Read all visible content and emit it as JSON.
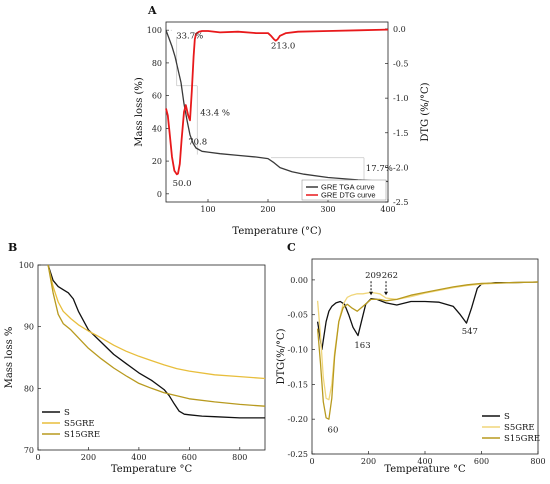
{
  "chart_data": [
    {
      "panel": "A",
      "type": "line",
      "xlabel": "Temperature (°C)",
      "ylabel_left": "Mass loss (%)",
      "ylabel_right": "DTG (%/°C)",
      "xlim": [
        30,
        400
      ],
      "ylim_left": [
        -5,
        105
      ],
      "ylim_right": [
        -2.5,
        0.1
      ],
      "xticks": [
        100,
        200,
        300,
        400
      ],
      "yticks_left": [
        0,
        20,
        40,
        60,
        80,
        100
      ],
      "yticks_right": [
        0.0,
        -0.5,
        -1.0,
        -1.5,
        -2.0,
        -2.5
      ],
      "yticks_right_labels": [
        "0.0",
        "-0.5",
        "-1.0",
        "-1.5",
        "-2.0",
        "-2.5"
      ],
      "legend": "bottom-right",
      "series": [
        {
          "name": "GRE TGA curve",
          "axis": "left",
          "color": "#3a3a3a",
          "x": [
            30,
            35,
            40,
            45,
            50,
            55,
            60,
            65,
            70,
            75,
            80,
            90,
            100,
            120,
            150,
            180,
            200,
            210,
            220,
            240,
            260,
            300,
            350,
            400
          ],
          "y": [
            100,
            95,
            90,
            84,
            76,
            68,
            55,
            45,
            36,
            31,
            28,
            26,
            25.5,
            24.5,
            23.5,
            22.5,
            21.5,
            19,
            16,
            13.5,
            12,
            10,
            8.5,
            7.5
          ]
        },
        {
          "name": "GRE DTG curve",
          "axis": "right",
          "color": "#e8191b",
          "x": [
            30,
            33,
            36,
            40,
            44,
            48,
            50,
            53,
            56,
            60,
            63,
            67,
            70,
            73,
            76,
            78,
            80,
            85,
            90,
            100,
            120,
            150,
            180,
            200,
            205,
            210,
            213,
            216,
            220,
            230,
            250,
            300,
            350,
            400
          ],
          "y": [
            -1.15,
            -1.25,
            -1.5,
            -1.85,
            -2.05,
            -2.1,
            -2.09,
            -1.95,
            -1.6,
            -1.2,
            -1.1,
            -1.25,
            -1.32,
            -0.9,
            -0.4,
            -0.15,
            -0.07,
            -0.04,
            -0.03,
            -0.03,
            -0.05,
            -0.04,
            -0.06,
            -0.06,
            -0.1,
            -0.15,
            -0.17,
            -0.15,
            -0.1,
            -0.06,
            -0.04,
            -0.03,
            -0.02,
            -0.01
          ]
        }
      ],
      "annotations": [
        {
          "text": "33.7%",
          "x": 47,
          "y": 95,
          "axis": "left"
        },
        {
          "text": "43.4 %",
          "x": 87,
          "y": 48,
          "axis": "left"
        },
        {
          "text": "70.8",
          "x": 67,
          "y": 30,
          "axis": "left"
        },
        {
          "text": "50.0",
          "x": 41,
          "y": -2.27,
          "axis": "right"
        },
        {
          "text": "213.0",
          "x": 205,
          "y": -0.28,
          "axis": "right"
        },
        {
          "text": "17.7%",
          "x": 363,
          "y": 14,
          "axis": "left"
        }
      ]
    },
    {
      "panel": "B",
      "type": "line",
      "xlabel": "Temperature °C",
      "ylabel": "Mass loss %",
      "xlim": [
        0,
        900
      ],
      "ylim": [
        70,
        100
      ],
      "xticks": [
        0,
        200,
        400,
        600,
        800
      ],
      "yticks": [
        70,
        80,
        90,
        100
      ],
      "legend": "bottom-left",
      "series": [
        {
          "name": "S",
          "color": "#111111",
          "x": [
            40,
            60,
            80,
            100,
            120,
            140,
            160,
            200,
            250,
            300,
            350,
            400,
            450,
            500,
            520,
            540,
            560,
            580,
            600,
            650,
            700,
            800,
            900
          ],
          "y": [
            100,
            97.5,
            96.5,
            96,
            95.5,
            94.5,
            92.5,
            89.5,
            87.5,
            85.5,
            84,
            82.5,
            81.3,
            79.8,
            78.8,
            77.5,
            76.3,
            75.8,
            75.7,
            75.5,
            75.4,
            75.2,
            75.2
          ]
        },
        {
          "name": "S5GRE",
          "color": "#e8be3c",
          "x": [
            40,
            60,
            80,
            100,
            130,
            160,
            200,
            250,
            300,
            350,
            400,
            450,
            500,
            550,
            600,
            700,
            800,
            900
          ],
          "y": [
            100,
            96.5,
            94,
            92.5,
            91.3,
            90.3,
            89.3,
            88.2,
            87,
            86,
            85.2,
            84.5,
            83.8,
            83.2,
            82.8,
            82.2,
            81.9,
            81.6
          ]
        },
        {
          "name": "S15GRE",
          "color": "#b89a1f",
          "x": [
            40,
            60,
            80,
            100,
            130,
            160,
            200,
            250,
            300,
            350,
            400,
            450,
            500,
            550,
            600,
            700,
            800,
            900
          ],
          "y": [
            100,
            95.5,
            92,
            90.5,
            89.5,
            88.2,
            86.5,
            84.8,
            83.3,
            82,
            80.8,
            80,
            79.3,
            78.8,
            78.3,
            77.8,
            77.4,
            77.1
          ]
        }
      ]
    },
    {
      "panel": "C",
      "type": "line",
      "xlabel": "Temperature °C",
      "ylabel": "DTG(%/°C)",
      "xlim": [
        0,
        800
      ],
      "ylim": [
        -0.25,
        0.03
      ],
      "xticks": [
        0,
        200,
        400,
        600,
        800
      ],
      "yticks": [
        0.0,
        -0.05,
        -0.1,
        -0.15,
        -0.2,
        -0.25
      ],
      "yticks_labels": [
        "0.00",
        "-0.05",
        "-0.10",
        "-0.15",
        "-0.20",
        "-0.25"
      ],
      "legend": "bottom-right",
      "series": [
        {
          "name": "S",
          "color": "#111111",
          "x": [
            20,
            35,
            50,
            60,
            70,
            85,
            100,
            115,
            130,
            145,
            163,
            175,
            190,
            209,
            230,
            262,
            300,
            350,
            400,
            450,
            500,
            525,
            547,
            565,
            585,
            600,
            650,
            700,
            800
          ],
          "y": [
            -0.06,
            -0.1,
            -0.06,
            -0.045,
            -0.038,
            -0.033,
            -0.031,
            -0.035,
            -0.05,
            -0.068,
            -0.08,
            -0.06,
            -0.035,
            -0.027,
            -0.028,
            -0.033,
            -0.036,
            -0.031,
            -0.031,
            -0.032,
            -0.038,
            -0.05,
            -0.062,
            -0.04,
            -0.012,
            -0.006,
            -0.004,
            -0.004,
            -0.003
          ]
        },
        {
          "name": "S5GRE",
          "color": "#f0d67a",
          "x": [
            20,
            30,
            40,
            50,
            60,
            70,
            80,
            95,
            110,
            125,
            140,
            160,
            180,
            209,
            240,
            262,
            300,
            350,
            400,
            450,
            500,
            550,
            600,
            700,
            800
          ],
          "y": [
            -0.03,
            -0.08,
            -0.14,
            -0.17,
            -0.172,
            -0.15,
            -0.105,
            -0.06,
            -0.035,
            -0.025,
            -0.022,
            -0.02,
            -0.02,
            -0.018,
            -0.02,
            -0.026,
            -0.028,
            -0.024,
            -0.019,
            -0.015,
            -0.011,
            -0.008,
            -0.006,
            -0.004,
            -0.003
          ]
        },
        {
          "name": "S15GRE",
          "color": "#b89a1f",
          "x": [
            20,
            30,
            40,
            50,
            60,
            70,
            80,
            95,
            110,
            125,
            140,
            160,
            180,
            209,
            240,
            262,
            300,
            350,
            400,
            450,
            500,
            550,
            600,
            700,
            800
          ],
          "y": [
            -0.07,
            -0.12,
            -0.175,
            -0.198,
            -0.2,
            -0.17,
            -0.11,
            -0.06,
            -0.04,
            -0.035,
            -0.04,
            -0.045,
            -0.038,
            -0.028,
            -0.028,
            -0.03,
            -0.028,
            -0.022,
            -0.018,
            -0.014,
            -0.01,
            -0.007,
            -0.005,
            -0.004,
            -0.003
          ]
        }
      ],
      "annotations": [
        {
          "text": "60",
          "x": 55,
          "y": -0.219
        },
        {
          "text": "163",
          "x": 150,
          "y": -0.098
        },
        {
          "text": "209",
          "x": 188,
          "y": 0.003
        },
        {
          "text": "262",
          "x": 247,
          "y": 0.003
        },
        {
          "text": "547",
          "x": 530,
          "y": -0.078
        }
      ]
    }
  ]
}
